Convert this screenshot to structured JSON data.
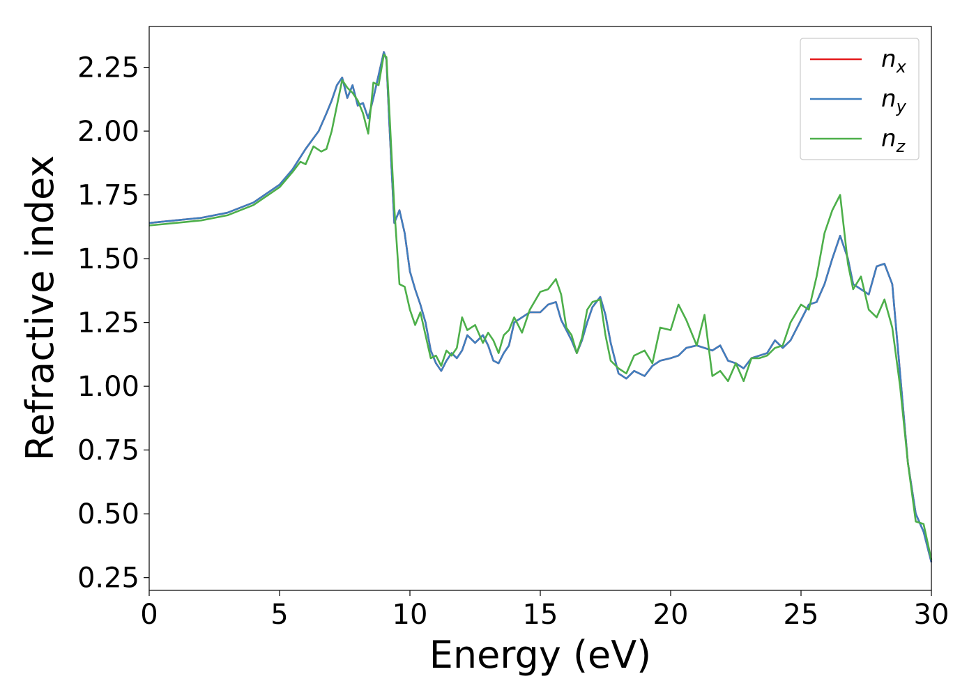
{
  "chart_data": {
    "type": "line",
    "title": "",
    "xlabel": "Energy (eV)",
    "ylabel": "Refractive index",
    "xlim": [
      0,
      30
    ],
    "ylim": [
      0.2,
      2.41
    ],
    "xticks": [
      0,
      5,
      10,
      15,
      20,
      25,
      30
    ],
    "xtick_labels": [
      "0",
      "5",
      "10",
      "15",
      "20",
      "25",
      "30"
    ],
    "yticks": [
      0.25,
      0.5,
      0.75,
      1.0,
      1.25,
      1.5,
      1.75,
      2.0,
      2.25
    ],
    "ytick_labels": [
      "0.25",
      "0.50",
      "0.75",
      "1.00",
      "1.25",
      "1.50",
      "1.75",
      "2.00",
      "2.25"
    ],
    "grid": false,
    "legend_position": "top-right",
    "series": [
      {
        "name": "n",
        "subscript": "x",
        "color": "#e41a1c",
        "x": [
          0,
          1,
          2,
          3,
          4,
          5,
          5.5,
          6,
          6.5,
          6.8,
          7.0,
          7.2,
          7.4,
          7.6,
          7.8,
          8.0,
          8.2,
          8.4,
          8.6,
          8.8,
          9.0,
          9.1,
          9.2,
          9.4,
          9.6,
          9.8,
          10.0,
          10.2,
          10.4,
          10.6,
          10.8,
          11.0,
          11.2,
          11.4,
          11.6,
          11.8,
          12.0,
          12.2,
          12.5,
          12.8,
          13.0,
          13.2,
          13.4,
          13.6,
          13.8,
          14.0,
          14.3,
          14.6,
          15.0,
          15.3,
          15.6,
          15.8,
          16.0,
          16.2,
          16.4,
          16.6,
          16.8,
          17.0,
          17.3,
          17.5,
          17.7,
          18.0,
          18.3,
          18.6,
          19.0,
          19.3,
          19.6,
          20.0,
          20.3,
          20.6,
          21.0,
          21.3,
          21.6,
          21.9,
          22.2,
          22.5,
          22.8,
          23.1,
          23.4,
          23.7,
          24.0,
          24.3,
          24.6,
          25.0,
          25.3,
          25.6,
          25.9,
          26.2,
          26.5,
          26.8,
          27.0,
          27.3,
          27.6,
          27.9,
          28.2,
          28.5,
          28.8,
          29.1,
          29.4,
          29.7,
          30.0
        ],
        "y": [
          1.64,
          1.65,
          1.66,
          1.68,
          1.72,
          1.79,
          1.85,
          1.93,
          2.0,
          2.07,
          2.12,
          2.18,
          2.21,
          2.13,
          2.18,
          2.1,
          2.11,
          2.05,
          2.13,
          2.22,
          2.31,
          2.28,
          2.05,
          1.64,
          1.69,
          1.6,
          1.45,
          1.38,
          1.32,
          1.25,
          1.14,
          1.09,
          1.06,
          1.1,
          1.13,
          1.11,
          1.14,
          1.2,
          1.17,
          1.2,
          1.16,
          1.1,
          1.09,
          1.13,
          1.16,
          1.25,
          1.27,
          1.29,
          1.29,
          1.32,
          1.33,
          1.26,
          1.22,
          1.18,
          1.13,
          1.18,
          1.25,
          1.31,
          1.35,
          1.28,
          1.17,
          1.05,
          1.03,
          1.06,
          1.04,
          1.08,
          1.1,
          1.11,
          1.12,
          1.15,
          1.16,
          1.15,
          1.14,
          1.16,
          1.1,
          1.09,
          1.07,
          1.11,
          1.12,
          1.13,
          1.18,
          1.15,
          1.18,
          1.26,
          1.32,
          1.33,
          1.4,
          1.5,
          1.59,
          1.5,
          1.4,
          1.38,
          1.36,
          1.47,
          1.48,
          1.4,
          1.05,
          0.7,
          0.5,
          0.43,
          0.31
        ]
      },
      {
        "name": "n",
        "subscript": "y",
        "color": "#3f7fbf",
        "x": [
          0,
          1,
          2,
          3,
          4,
          5,
          5.5,
          6,
          6.5,
          6.8,
          7.0,
          7.2,
          7.4,
          7.6,
          7.8,
          8.0,
          8.2,
          8.4,
          8.6,
          8.8,
          9.0,
          9.1,
          9.2,
          9.4,
          9.6,
          9.8,
          10.0,
          10.2,
          10.4,
          10.6,
          10.8,
          11.0,
          11.2,
          11.4,
          11.6,
          11.8,
          12.0,
          12.2,
          12.5,
          12.8,
          13.0,
          13.2,
          13.4,
          13.6,
          13.8,
          14.0,
          14.3,
          14.6,
          15.0,
          15.3,
          15.6,
          15.8,
          16.0,
          16.2,
          16.4,
          16.6,
          16.8,
          17.0,
          17.3,
          17.5,
          17.7,
          18.0,
          18.3,
          18.6,
          19.0,
          19.3,
          19.6,
          20.0,
          20.3,
          20.6,
          21.0,
          21.3,
          21.6,
          21.9,
          22.2,
          22.5,
          22.8,
          23.1,
          23.4,
          23.7,
          24.0,
          24.3,
          24.6,
          25.0,
          25.3,
          25.6,
          25.9,
          26.2,
          26.5,
          26.8,
          27.0,
          27.3,
          27.6,
          27.9,
          28.2,
          28.5,
          28.8,
          29.1,
          29.4,
          29.7,
          30.0
        ],
        "y": [
          1.64,
          1.65,
          1.66,
          1.68,
          1.72,
          1.79,
          1.85,
          1.93,
          2.0,
          2.07,
          2.12,
          2.18,
          2.21,
          2.13,
          2.18,
          2.1,
          2.11,
          2.05,
          2.13,
          2.22,
          2.31,
          2.28,
          2.05,
          1.64,
          1.69,
          1.6,
          1.45,
          1.38,
          1.32,
          1.25,
          1.14,
          1.09,
          1.06,
          1.1,
          1.13,
          1.11,
          1.14,
          1.2,
          1.17,
          1.2,
          1.16,
          1.1,
          1.09,
          1.13,
          1.16,
          1.25,
          1.27,
          1.29,
          1.29,
          1.32,
          1.33,
          1.26,
          1.22,
          1.18,
          1.13,
          1.18,
          1.25,
          1.31,
          1.35,
          1.28,
          1.17,
          1.05,
          1.03,
          1.06,
          1.04,
          1.08,
          1.1,
          1.11,
          1.12,
          1.15,
          1.16,
          1.15,
          1.14,
          1.16,
          1.1,
          1.09,
          1.07,
          1.11,
          1.12,
          1.13,
          1.18,
          1.15,
          1.18,
          1.26,
          1.32,
          1.33,
          1.4,
          1.5,
          1.59,
          1.5,
          1.4,
          1.38,
          1.36,
          1.47,
          1.48,
          1.4,
          1.05,
          0.7,
          0.5,
          0.43,
          0.31
        ]
      },
      {
        "name": "n",
        "subscript": "z",
        "color": "#4daf4a",
        "x": [
          0,
          1,
          2,
          3,
          4,
          5,
          5.5,
          5.8,
          6.0,
          6.3,
          6.6,
          6.8,
          7.0,
          7.2,
          7.4,
          7.6,
          7.8,
          8.0,
          8.2,
          8.4,
          8.6,
          8.8,
          9.0,
          9.1,
          9.2,
          9.4,
          9.6,
          9.8,
          10.0,
          10.2,
          10.4,
          10.6,
          10.8,
          11.0,
          11.2,
          11.4,
          11.6,
          11.8,
          12.0,
          12.2,
          12.5,
          12.8,
          13.0,
          13.2,
          13.4,
          13.6,
          13.8,
          14.0,
          14.3,
          14.6,
          15.0,
          15.3,
          15.6,
          15.8,
          16.0,
          16.2,
          16.4,
          16.6,
          16.8,
          17.0,
          17.3,
          17.5,
          17.7,
          18.0,
          18.3,
          18.6,
          19.0,
          19.3,
          19.6,
          20.0,
          20.3,
          20.6,
          21.0,
          21.3,
          21.6,
          21.9,
          22.2,
          22.5,
          22.8,
          23.1,
          23.4,
          23.7,
          24.0,
          24.3,
          24.6,
          25.0,
          25.3,
          25.6,
          25.9,
          26.2,
          26.5,
          26.8,
          27.0,
          27.3,
          27.6,
          27.9,
          28.2,
          28.5,
          28.8,
          29.1,
          29.4,
          29.7,
          30.0
        ],
        "y": [
          1.63,
          1.64,
          1.65,
          1.67,
          1.71,
          1.78,
          1.84,
          1.88,
          1.87,
          1.94,
          1.92,
          1.93,
          2.0,
          2.1,
          2.2,
          2.17,
          2.15,
          2.12,
          2.07,
          1.99,
          2.19,
          2.18,
          2.3,
          2.29,
          2.1,
          1.7,
          1.4,
          1.39,
          1.3,
          1.24,
          1.29,
          1.2,
          1.11,
          1.12,
          1.08,
          1.14,
          1.12,
          1.15,
          1.27,
          1.22,
          1.24,
          1.17,
          1.21,
          1.18,
          1.13,
          1.2,
          1.22,
          1.27,
          1.21,
          1.3,
          1.37,
          1.38,
          1.42,
          1.36,
          1.23,
          1.2,
          1.13,
          1.19,
          1.3,
          1.33,
          1.34,
          1.2,
          1.1,
          1.07,
          1.05,
          1.12,
          1.14,
          1.09,
          1.23,
          1.22,
          1.32,
          1.26,
          1.16,
          1.28,
          1.04,
          1.06,
          1.02,
          1.09,
          1.02,
          1.11,
          1.11,
          1.12,
          1.15,
          1.16,
          1.25,
          1.32,
          1.3,
          1.43,
          1.6,
          1.69,
          1.75,
          1.48,
          1.38,
          1.43,
          1.3,
          1.27,
          1.34,
          1.23,
          1.0,
          0.7,
          0.47,
          0.46,
          0.32
        ]
      }
    ]
  }
}
